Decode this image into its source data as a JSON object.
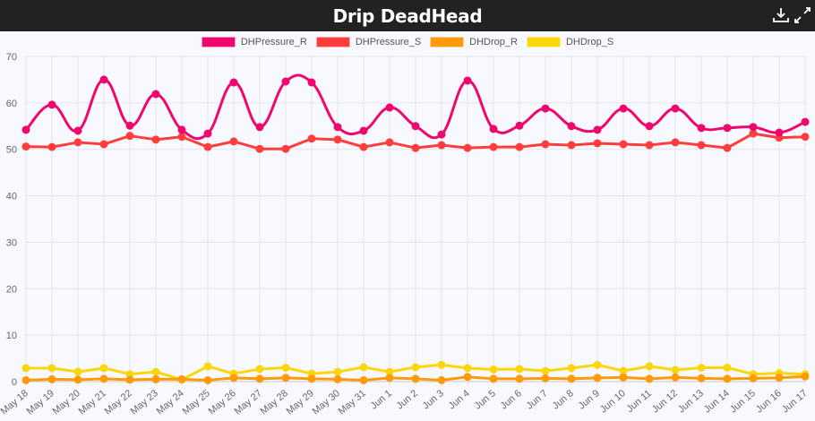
{
  "header": {
    "title": "Drip DeadHead",
    "download_icon": "download-icon",
    "expand_icon": "expand-icon"
  },
  "chart_data": {
    "type": "line",
    "title": "Drip DeadHead",
    "xlabel": "",
    "ylabel": "",
    "ylim": [
      0,
      70
    ],
    "y_ticks": [
      "0",
      "10",
      "20",
      "30",
      "40",
      "50",
      "60",
      "70"
    ],
    "grid": true,
    "legend_position": "top-center",
    "categories": [
      "May 18",
      "May 19",
      "May 20",
      "May 21",
      "May 22",
      "May 23",
      "May 24",
      "May 25",
      "May 26",
      "May 27",
      "May 28",
      "May 29",
      "May 30",
      "May 31",
      "Jun 1",
      "Jun 2",
      "Jun 3",
      "Jun 4",
      "Jun 5",
      "Jun 6",
      "Jun 7",
      "Jun 8",
      "Jun 9",
      "Jun 10",
      "Jun 11",
      "Jun 12",
      "Jun 13",
      "Jun 14",
      "Jun 15",
      "Jun 16",
      "Jun 17"
    ],
    "series": [
      {
        "name": "DHPressure_R",
        "color": "#f0076e",
        "smooth": true,
        "values": [
          54.2,
          59.6,
          54.0,
          65.0,
          55.1,
          61.9,
          54.2,
          53.4,
          64.4,
          54.8,
          64.6,
          64.4,
          54.8,
          54.0,
          59.0,
          55.0,
          53.2,
          64.8,
          54.4,
          55.1,
          58.8,
          55.0,
          54.2,
          58.8,
          55.0,
          58.8,
          54.6,
          54.6,
          54.8,
          53.6,
          55.9
        ]
      },
      {
        "name": "DHPressure_S",
        "color": "#ff3d3d",
        "smooth": false,
        "values": [
          50.6,
          50.5,
          51.5,
          51.1,
          52.9,
          52.1,
          52.7,
          50.5,
          51.7,
          50.1,
          50.1,
          52.3,
          52.1,
          50.5,
          51.5,
          50.3,
          50.9,
          50.3,
          50.5,
          50.5,
          51.1,
          50.9,
          51.3,
          51.1,
          50.9,
          51.5,
          50.9,
          50.3,
          53.4,
          52.5,
          52.7
        ]
      },
      {
        "name": "DHDrop_R",
        "color": "#ff9a0a",
        "smooth": false,
        "values": [
          0.3,
          0.5,
          0.4,
          0.6,
          0.4,
          0.5,
          0.5,
          0.3,
          0.8,
          0.6,
          0.8,
          0.6,
          0.5,
          0.3,
          0.8,
          0.6,
          0.3,
          1.0,
          0.6,
          0.6,
          0.7,
          0.6,
          0.8,
          0.9,
          0.6,
          0.9,
          0.7,
          0.6,
          0.7,
          0.8,
          1.1
        ]
      },
      {
        "name": "DHDrop_S",
        "color": "#fad70a",
        "smooth": false,
        "values": [
          2.9,
          2.9,
          2.1,
          2.9,
          1.6,
          2.1,
          0.4,
          3.3,
          1.7,
          2.7,
          3.0,
          1.7,
          2.1,
          3.1,
          2.1,
          3.1,
          3.6,
          2.9,
          2.6,
          2.7,
          2.3,
          2.9,
          3.6,
          2.3,
          3.3,
          2.5,
          3.0,
          3.0,
          1.6,
          1.8,
          1.6
        ]
      }
    ]
  }
}
